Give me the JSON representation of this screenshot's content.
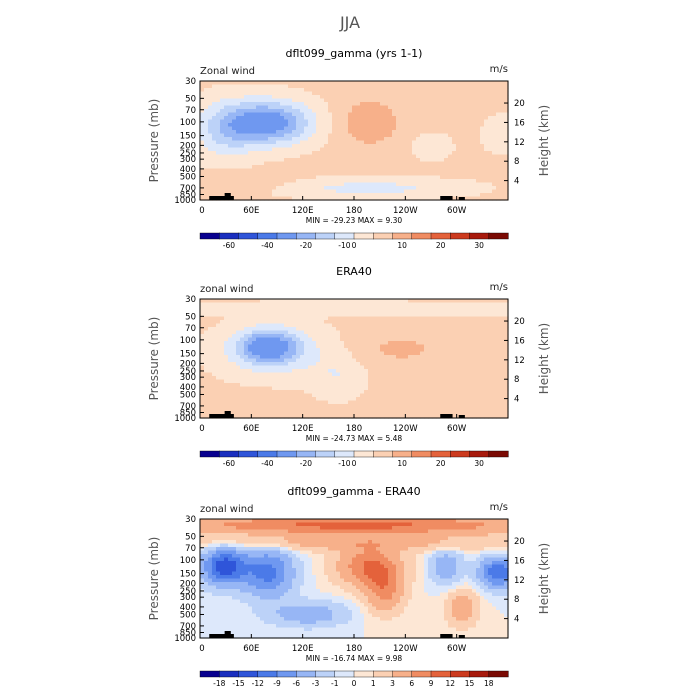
{
  "page": {
    "title": "JJA"
  },
  "chart_data": [
    {
      "type": "heatmap",
      "title": "dflt099_gamma (yrs 1-1)",
      "left_label": "Zonal wind",
      "units": "m/s",
      "ylabel": "Pressure (mb)",
      "ylabel_right": "Height (km)",
      "x_ticks": [
        "0",
        "60E",
        "120E",
        "180",
        "120W",
        "60W"
      ],
      "y_ticks": [
        "30",
        "50",
        "70",
        "100",
        "150",
        "200",
        "250",
        "300",
        "400",
        "500",
        "700",
        "850",
        "1000"
      ],
      "y_ticks_right": [
        "20",
        "16",
        "12",
        "8",
        "4"
      ],
      "stats": "MIN = -29.23   MAX =   9.30",
      "min": -29.23,
      "max": 9.3,
      "colorbar_labels": [
        "-60",
        "-40",
        "-20",
        "-10",
        "0",
        "10",
        "20",
        "30"
      ],
      "colorbar_colors": [
        "#08008f",
        "#1a2fbf",
        "#2f55d9",
        "#4b7ae8",
        "#6f98f0",
        "#97b6f5",
        "#bcd2f8",
        "#dde8fb",
        "#fde7d5",
        "#fbd0b3",
        "#f7b08a",
        "#f08c62",
        "#e4623b",
        "#cc3a1e",
        "#a81a0c",
        "#7a0a03"
      ]
    },
    {
      "type": "heatmap",
      "title": "ERA40",
      "left_label": "zonal wind",
      "units": "m/s",
      "ylabel": "Pressure (mb)",
      "ylabel_right": "Height (km)",
      "x_ticks": [
        "0",
        "60E",
        "120E",
        "180",
        "120W",
        "60W"
      ],
      "y_ticks": [
        "30",
        "50",
        "70",
        "100",
        "150",
        "200",
        "250",
        "300",
        "400",
        "500",
        "700",
        "850",
        "1000"
      ],
      "y_ticks_right": [
        "20",
        "16",
        "12",
        "8",
        "4"
      ],
      "stats": "MIN = -24.73   MAX =   5.48",
      "min": -24.73,
      "max": 5.48,
      "colorbar_labels": [
        "-60",
        "-40",
        "-20",
        "-10",
        "0",
        "10",
        "20",
        "30"
      ],
      "colorbar_colors": [
        "#08008f",
        "#1a2fbf",
        "#2f55d9",
        "#4b7ae8",
        "#6f98f0",
        "#97b6f5",
        "#bcd2f8",
        "#dde8fb",
        "#fde7d5",
        "#fbd0b3",
        "#f7b08a",
        "#f08c62",
        "#e4623b",
        "#cc3a1e",
        "#a81a0c",
        "#7a0a03"
      ]
    },
    {
      "type": "heatmap",
      "title": "dflt099_gamma - ERA40",
      "left_label": "zonal wind",
      "units": "m/s",
      "ylabel": "Pressure (mb)",
      "ylabel_right": "Height (km)",
      "x_ticks": [
        "0",
        "60E",
        "120E",
        "180",
        "120W",
        "60W"
      ],
      "y_ticks": [
        "30",
        "50",
        "70",
        "100",
        "150",
        "200",
        "250",
        "300",
        "400",
        "500",
        "700",
        "850",
        "1000"
      ],
      "y_ticks_right": [
        "20",
        "16",
        "12",
        "8",
        "4"
      ],
      "stats": "MIN = -16.74   MAX =   9.98",
      "min": -16.74,
      "max": 9.98,
      "colorbar_labels": [
        "-18",
        "-15",
        "-12",
        "-9",
        "-6",
        "-3",
        "-1",
        "0",
        "1",
        "3",
        "6",
        "9",
        "12",
        "15",
        "18"
      ],
      "colorbar_colors": [
        "#08008f",
        "#1a2fbf",
        "#2f55d9",
        "#4b7ae8",
        "#6f98f0",
        "#97b6f5",
        "#bcd2f8",
        "#dde8fb",
        "#fde7d5",
        "#fbd0b3",
        "#f7b08a",
        "#f08c62",
        "#e4623b",
        "#cc3a1e",
        "#a81a0c",
        "#7a0a03"
      ]
    }
  ]
}
